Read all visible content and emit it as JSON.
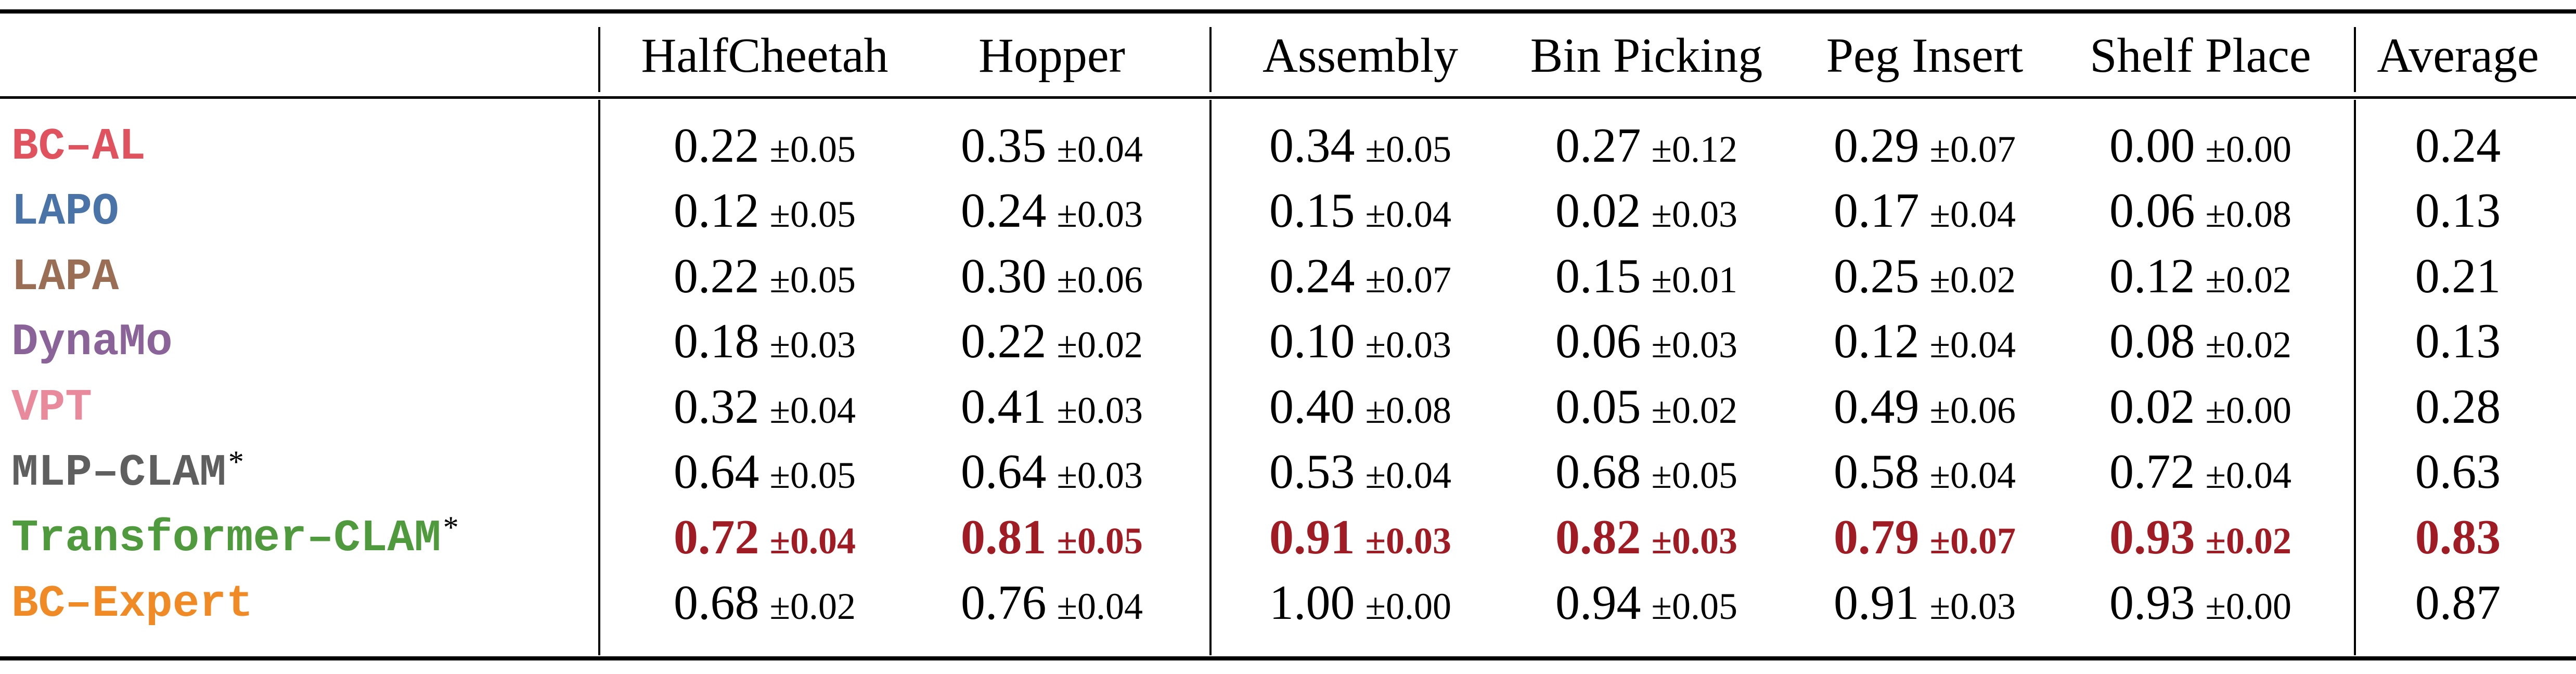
{
  "table": {
    "headers": [
      "HalfCheetah",
      "Hopper",
      "Assembly",
      "Bin Picking",
      "Peg Insert",
      "Shelf Place",
      "Average"
    ],
    "rows": [
      {
        "method": "BC–AL",
        "mark": "",
        "color": "#e0525e",
        "best": false,
        "values": [
          "0.22",
          "0.35",
          "0.34",
          "0.27",
          "0.29",
          "0.00"
        ],
        "stds": [
          "±0.05",
          "±0.04",
          "±0.05",
          "±0.12",
          "±0.07",
          "±0.00"
        ],
        "average": "0.24"
      },
      {
        "method": "LAPO",
        "mark": "",
        "color": "#4a73a8",
        "best": false,
        "values": [
          "0.12",
          "0.24",
          "0.15",
          "0.02",
          "0.17",
          "0.06"
        ],
        "stds": [
          "±0.05",
          "±0.03",
          "±0.04",
          "±0.03",
          "±0.04",
          "±0.08"
        ],
        "average": "0.13"
      },
      {
        "method": "LAPA",
        "mark": "",
        "color": "#9a6d55",
        "best": false,
        "values": [
          "0.22",
          "0.30",
          "0.24",
          "0.15",
          "0.25",
          "0.12"
        ],
        "stds": [
          "±0.05",
          "±0.06",
          "±0.07",
          "±0.01",
          "±0.02",
          "±0.02"
        ],
        "average": "0.21"
      },
      {
        "method": "DynaMo",
        "mark": "",
        "color": "#8a6398",
        "best": false,
        "values": [
          "0.18",
          "0.22",
          "0.10",
          "0.06",
          "0.12",
          "0.08"
        ],
        "stds": [
          "±0.03",
          "±0.02",
          "±0.03",
          "±0.03",
          "±0.04",
          "±0.02"
        ],
        "average": "0.13"
      },
      {
        "method": "VPT",
        "mark": "",
        "color": "#e98a9c",
        "best": false,
        "values": [
          "0.32",
          "0.41",
          "0.40",
          "0.05",
          "0.49",
          "0.02"
        ],
        "stds": [
          "±0.04",
          "±0.03",
          "±0.08",
          "±0.02",
          "±0.06",
          "±0.00"
        ],
        "average": "0.28"
      },
      {
        "method": "MLP–CLAM",
        "mark": "*",
        "color": "#5f5f5f",
        "best": false,
        "values": [
          "0.64",
          "0.64",
          "0.53",
          "0.68",
          "0.58",
          "0.72"
        ],
        "stds": [
          "±0.05",
          "±0.03",
          "±0.04",
          "±0.05",
          "±0.04",
          "±0.04"
        ],
        "average": "0.63"
      },
      {
        "method": "Transformer–CLAM",
        "mark": "*",
        "color": "#4e9a3c",
        "best": true,
        "values": [
          "0.72",
          "0.81",
          "0.91",
          "0.82",
          "0.79",
          "0.93"
        ],
        "stds": [
          "±0.04",
          "±0.05",
          "±0.03",
          "±0.03",
          "±0.07",
          "±0.02"
        ],
        "average": "0.83"
      },
      {
        "method": "BC–Expert",
        "mark": "",
        "color": "#f08a24",
        "best": false,
        "values": [
          "0.68",
          "0.76",
          "1.00",
          "0.94",
          "0.91",
          "0.93"
        ],
        "stds": [
          "±0.02",
          "±0.04",
          "±0.00",
          "±0.05",
          "±0.03",
          "±0.00"
        ],
        "average": "0.87"
      }
    ]
  }
}
